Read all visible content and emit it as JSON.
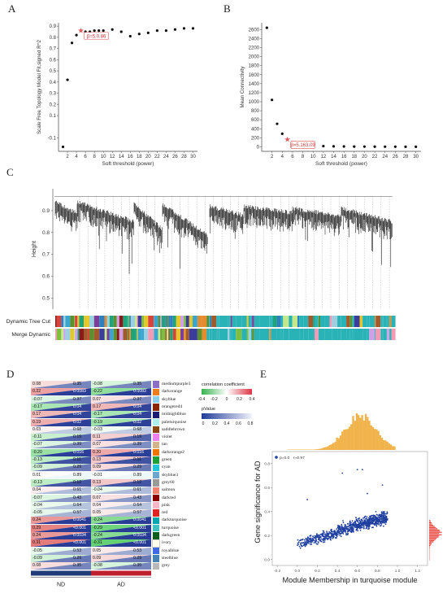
{
  "panels": {
    "a": "A",
    "b": "B",
    "c": "C",
    "d": "D",
    "e": "E"
  },
  "chart_data": [
    {
      "type": "scatter",
      "panel": "A",
      "xlabel": "Soft threshold (power)",
      "ylabel": "Scale Free Topology Model Fit,signed R^2",
      "xlim": [
        0,
        31
      ],
      "ylim": [
        -0.22,
        0.93
      ],
      "xticks": [
        2,
        4,
        6,
        8,
        10,
        12,
        14,
        16,
        18,
        20,
        22,
        24,
        26,
        28,
        30
      ],
      "yticks": [
        -0.1,
        0.1,
        0.2,
        0.3,
        0.4,
        0.5,
        0.6,
        0.7,
        0.8,
        0.9
      ],
      "points": [
        [
          1,
          -0.18
        ],
        [
          2,
          0.42
        ],
        [
          3,
          0.75
        ],
        [
          4,
          0.82
        ],
        [
          6,
          0.85
        ],
        [
          7,
          0.85
        ],
        [
          8,
          0.86
        ],
        [
          9,
          0.86
        ],
        [
          10,
          0.86
        ],
        [
          12,
          0.87
        ],
        [
          14,
          0.85
        ],
        [
          16,
          0.81
        ],
        [
          18,
          0.83
        ],
        [
          20,
          0.84
        ],
        [
          22,
          0.86
        ],
        [
          24,
          0.86
        ],
        [
          26,
          0.87
        ],
        [
          28,
          0.88
        ],
        [
          30,
          0.88
        ]
      ],
      "highlight": {
        "x": 5,
        "y": 0.86,
        "label": "β=5.0.86"
      },
      "grid": false
    },
    {
      "type": "scatter",
      "panel": "B",
      "xlabel": "Soft threshold (power)",
      "ylabel": "Mean Connectivity",
      "xlim": [
        0,
        31
      ],
      "ylim": [
        -100,
        2750
      ],
      "xticks": [
        2,
        4,
        6,
        8,
        10,
        12,
        14,
        16,
        18,
        20,
        22,
        24,
        26,
        28,
        30
      ],
      "yticks": [
        0,
        200,
        400,
        600,
        800,
        1000,
        1200,
        1400,
        1600,
        1800,
        2000,
        2200,
        2400,
        2600
      ],
      "points": [
        [
          1,
          2640
        ],
        [
          2,
          1040
        ],
        [
          3,
          510
        ],
        [
          4,
          290
        ],
        [
          6,
          105
        ],
        [
          7,
          70
        ],
        [
          8,
          50
        ],
        [
          9,
          36
        ],
        [
          10,
          26
        ],
        [
          12,
          16
        ],
        [
          14,
          11
        ],
        [
          16,
          8
        ],
        [
          18,
          6
        ],
        [
          20,
          5
        ],
        [
          22,
          4
        ],
        [
          24,
          3
        ],
        [
          26,
          3
        ],
        [
          28,
          2
        ],
        [
          30,
          2
        ]
      ],
      "highlight": {
        "x": 5,
        "y": 163,
        "label": "β=5.163.09"
      },
      "grid": false
    },
    {
      "type": "dendrogram",
      "panel": "C",
      "ylabel": "Height",
      "yticks": [
        0.5,
        0.6,
        0.7,
        0.8,
        0.9
      ],
      "ylim": [
        0.45,
        1.0
      ],
      "track_labels": [
        "Dynamic Tree Cut",
        "Merge Dynamic"
      ]
    },
    {
      "type": "heatmap",
      "panel": "D",
      "columns": [
        "ND",
        "AD"
      ],
      "legend_title_1": "correlation coefficient",
      "legend_ticks_1": [
        "-0.4",
        "-0.2",
        "0",
        "0.2",
        "0.4"
      ],
      "legend_title_2": "pValue",
      "legend_ticks_2": [
        "0",
        "0.2",
        "0.4",
        "0.6",
        "0.8"
      ],
      "rows": [
        {
          "module": "mediumpurple3",
          "color": "#8a6fc4",
          "nd": "0.08",
          "ndp": "0.35",
          "ad": "-0.08",
          "adp": "0.35"
        },
        {
          "module": "darkorange",
          "color": "#ee7d1c",
          "nd": "0.22",
          "ndp": "0.0083",
          "ad": "-0.22",
          "adp": "0.0083"
        },
        {
          "module": "skyblue",
          "color": "#8ecdea",
          "nd": "-0.07",
          "ndp": "0.37",
          "ad": "0.07",
          "adp": "0.37"
        },
        {
          "module": "orangered4",
          "color": "#8b2500",
          "nd": "-0.17",
          "ndp": "0.04",
          "ad": "0.17",
          "adp": "0.04"
        },
        {
          "module": "midnightblue",
          "color": "#1a1a6e",
          "nd": "0.17",
          "ndp": "0.04",
          "ad": "-0.17",
          "adp": "0.04"
        },
        {
          "module": "paleturquoise",
          "color": "#aeeeee",
          "nd": "0.19",
          "ndp": "0.02",
          "ad": "-0.19",
          "adp": "0.02"
        },
        {
          "module": "saddlebrown",
          "color": "#8b4513",
          "nd": "0.03",
          "ndp": "0.68",
          "ad": "-0.03",
          "adp": "0.68"
        },
        {
          "module": "violet",
          "color": "#ee82ee",
          "nd": "-0.11",
          "ndp": "0.19",
          "ad": "0.11",
          "adp": "0.19"
        },
        {
          "module": "tan",
          "color": "#d2b48c",
          "nd": "-0.07",
          "ndp": "0.39",
          "ad": "0.07",
          "adp": "0.39"
        },
        {
          "module": "darkorange2",
          "color": "#ee7600",
          "nd": "-0.20",
          "ndp": "0.016",
          "ad": "0.20",
          "adp": "0.016"
        },
        {
          "module": "green",
          "color": "#1f9e3a",
          "nd": "-0.13",
          "ndp": "0.11",
          "ad": "0.13",
          "adp": "0.11"
        },
        {
          "module": "cyan",
          "color": "#22c6d6",
          "nd": "-0.09",
          "ndp": "0.29",
          "ad": "0.09",
          "adp": "0.29"
        },
        {
          "module": "skyblue3",
          "color": "#6ca6cd",
          "nd": "0.01",
          "ndp": "0.89",
          "ad": "-0.01",
          "adp": "0.89"
        },
        {
          "module": "grey60",
          "color": "#999999",
          "nd": "-0.13",
          "ndp": "0.12",
          "ad": "0.13",
          "adp": "0.12"
        },
        {
          "module": "salmon",
          "color": "#f08070",
          "nd": "0.04",
          "ndp": "0.61",
          "ad": "-0.04",
          "adp": "0.61"
        },
        {
          "module": "darkred",
          "color": "#8b0000",
          "nd": "-0.07",
          "ndp": "0.43",
          "ad": "0.07",
          "adp": "0.43"
        },
        {
          "module": "pink",
          "color": "#f5b7c6",
          "nd": "-0.04",
          "ndp": "0.64",
          "ad": "0.04",
          "adp": "0.64"
        },
        {
          "module": "red",
          "color": "#e02424",
          "nd": "-0.05",
          "ndp": "0.57",
          "ad": "0.05",
          "adp": "0.57"
        },
        {
          "module": "darkturquoise",
          "color": "#00a5ad",
          "nd": "0.24",
          "ndp": "0.0041",
          "ad": "-0.24",
          "adp": "0.0041"
        },
        {
          "module": "turquoise",
          "color": "#40c0c0",
          "nd": "0.29",
          "ndp": "<0.001",
          "ad": "-0.29",
          "adp": "<0.001"
        },
        {
          "module": "darkgreen",
          "color": "#0b5d1e",
          "nd": "0.24",
          "ndp": "0.0034",
          "ad": "-0.24",
          "adp": "0.0034"
        },
        {
          "module": "ivory",
          "color": "#fdfbe9",
          "nd": "0.31",
          "ndp": "<0.001",
          "ad": "-0.31",
          "adp": "<0.001"
        },
        {
          "module": "royalblue",
          "color": "#4169e1",
          "nd": "-0.05",
          "ndp": "0.53",
          "ad": "0.05",
          "adp": "0.53"
        },
        {
          "module": "steelblue",
          "color": "#4682b4",
          "nd": "-0.09",
          "ndp": "0.29",
          "ad": "0.09",
          "adp": "0.29"
        },
        {
          "module": "grey",
          "color": "#b8b8b8",
          "nd": "0.08",
          "ndp": "0.35",
          "ad": "-0.08",
          "adp": "0.35"
        }
      ],
      "column_colors": {
        "ND": "#1f3b78",
        "AD": "#c0202d"
      }
    },
    {
      "type": "scatter",
      "panel": "E",
      "xlabel": "Module Membership in turquoise module",
      "ylabel": "Gene significance for AD",
      "xlim": [
        -0.25,
        1.3
      ],
      "ylim": [
        -0.05,
        0.9
      ],
      "xticks": [
        "-0.2",
        "0.0",
        "0.2",
        "0.4",
        "0.6",
        "0.8",
        "1.0",
        "1.2"
      ],
      "yticks": [
        "0.0",
        "0.2",
        "0.4",
        "0.6",
        "0.8"
      ],
      "annotation": {
        "p": "p=0.0",
        "r": "r=0.97"
      },
      "point_color": "#1f3fa0",
      "marginal_color_top": "#f1b44c",
      "marginal_color_right": "#e8453c"
    }
  ]
}
